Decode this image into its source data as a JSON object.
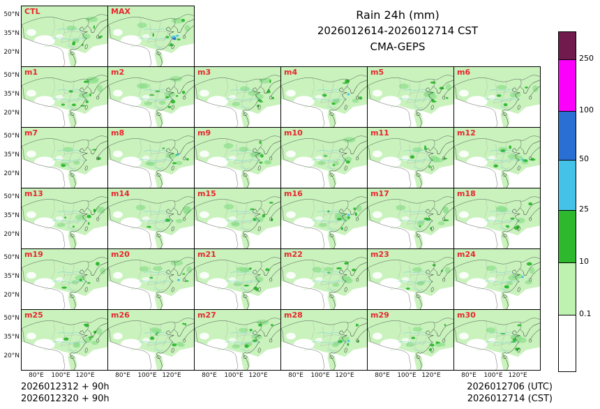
{
  "title": {
    "line1": "Rain 24h (mm)",
    "line2": "2026012614-2026012714 CST",
    "line3": "CMA-GEPS"
  },
  "panels": [
    {
      "label": "CTL"
    },
    {
      "label": "MAX"
    },
    {
      "label": "m1"
    },
    {
      "label": "m2"
    },
    {
      "label": "m3"
    },
    {
      "label": "m4"
    },
    {
      "label": "m5"
    },
    {
      "label": "m6"
    },
    {
      "label": "m7"
    },
    {
      "label": "m8"
    },
    {
      "label": "m9"
    },
    {
      "label": "m10"
    },
    {
      "label": "m11"
    },
    {
      "label": "m12"
    },
    {
      "label": "m13"
    },
    {
      "label": "m14"
    },
    {
      "label": "m15"
    },
    {
      "label": "m16"
    },
    {
      "label": "m17"
    },
    {
      "label": "m18"
    },
    {
      "label": "m19"
    },
    {
      "label": "m20"
    },
    {
      "label": "m21"
    },
    {
      "label": "m22"
    },
    {
      "label": "m23"
    },
    {
      "label": "m24"
    },
    {
      "label": "m25"
    },
    {
      "label": "m26"
    },
    {
      "label": "m27"
    },
    {
      "label": "m28"
    },
    {
      "label": "m29"
    },
    {
      "label": "m30"
    }
  ],
  "axes": {
    "y_ticks": [
      "50°N",
      "35°N",
      "20°N"
    ],
    "x_ticks": [
      "80°E",
      "100°E",
      "120°E"
    ]
  },
  "colorbar": {
    "labels": [
      "250",
      "100",
      "50",
      "25",
      "10",
      "0.1"
    ],
    "colors_top_to_bottom": [
      "#701a4e",
      "#fb00fb",
      "#2a6fd4",
      "#45c2e8",
      "#2eb82e",
      "#bdf2b0",
      "#ffffff"
    ]
  },
  "footer": {
    "left_line1": "2026012312 + 90h",
    "left_line2": "2026012320 + 90h",
    "right_line1": "2026012706 (UTC)",
    "right_line2": "2026012714 (CST)"
  }
}
